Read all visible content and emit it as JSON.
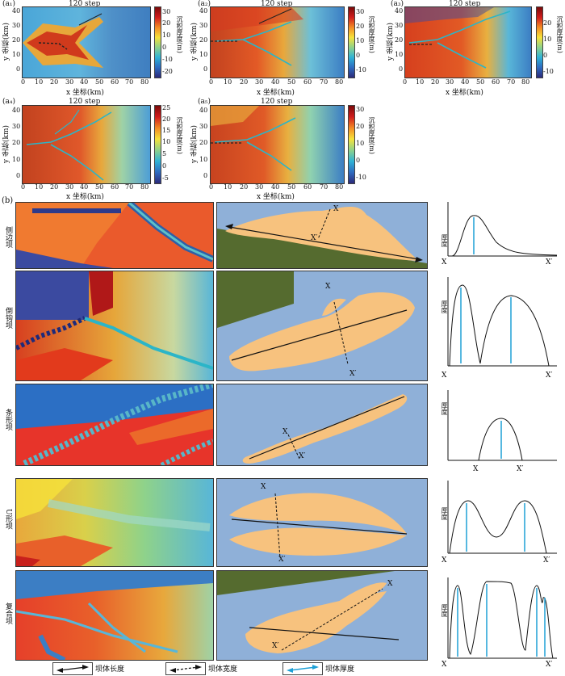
{
  "top_panels": [
    {
      "id": "a1",
      "label": "(a₁)",
      "title": "120 step",
      "xlabel": "x 坐标(km)",
      "ylabel": "y 坐标(km)",
      "colorbar_label": "沉积厚度(m)",
      "colorbar_ticks": [
        "30",
        "20",
        "10",
        "0",
        "-10",
        "-20"
      ],
      "y_ticks": [
        "40",
        "30",
        "20",
        "10",
        "0"
      ],
      "x_ticks": [
        "0",
        "10",
        "20",
        "30",
        "40",
        "50",
        "60",
        "70",
        "80"
      ]
    },
    {
      "id": "a2",
      "label": "(a₂)",
      "title": "120 step",
      "xlabel": "x 坐标(km)",
      "ylabel": "y 坐标(km)",
      "colorbar_label": "沉积厚度(m)",
      "colorbar_ticks": [
        "30",
        "20",
        "10",
        "0",
        "-10"
      ],
      "y_ticks": [
        "40",
        "30",
        "20",
        "10",
        "0"
      ],
      "x_ticks": [
        "0",
        "10",
        "20",
        "30",
        "40",
        "50",
        "60",
        "70",
        "80"
      ]
    },
    {
      "id": "a3",
      "label": "(a₃)",
      "title": "120 step",
      "xlabel": "x 坐标(km)",
      "ylabel": "y 坐标(km)",
      "colorbar_label": "沉积厚度(m)",
      "colorbar_ticks": [
        "20",
        "10",
        "0",
        "-10"
      ],
      "y_ticks": [
        "40",
        "30",
        "20",
        "10",
        "0"
      ],
      "x_ticks": [
        "0",
        "10",
        "20",
        "30",
        "40",
        "50",
        "60",
        "70",
        "80"
      ]
    },
    {
      "id": "a4",
      "label": "(a₄)",
      "title": "120 step",
      "xlabel": "x 坐标(km)",
      "ylabel": "y 坐标(km)",
      "colorbar_label": "沉积厚度(m)",
      "colorbar_ticks": [
        "25",
        "20",
        "15",
        "10",
        "5",
        "0",
        "-5"
      ],
      "y_ticks": [
        "40",
        "30",
        "20",
        "10",
        "0"
      ],
      "x_ticks": [
        "0",
        "10",
        "20",
        "30",
        "40",
        "50",
        "60",
        "70",
        "80"
      ]
    },
    {
      "id": "a5",
      "label": "(a₅)",
      "title": "120 step",
      "xlabel": "x 坐标(km)",
      "ylabel": "y 坐标(km)",
      "colorbar_label": "沉积厚度(m)",
      "colorbar_ticks": [
        "30",
        "20",
        "10",
        "0",
        "-10"
      ],
      "y_ticks": [
        "40",
        "30",
        "20",
        "10",
        "0"
      ],
      "x_ticks": [
        "0",
        "10",
        "20",
        "30",
        "40",
        "50",
        "60",
        "70",
        "80"
      ]
    }
  ],
  "panel_b_label": "(b)",
  "rows": [
    {
      "name": "侧边坝",
      "x_start": "X",
      "x_end": "X′",
      "thickness_label": "厚度"
    },
    {
      "name": "倒钩坝",
      "x_start": "X",
      "x_end": "X′",
      "thickness_label": "厚度"
    },
    {
      "name": "条形坝",
      "x_start": "X",
      "x_end": "X′",
      "thickness_label": "厚度"
    },
    {
      "name": "U形坝",
      "x_start": "X",
      "x_end": "X′",
      "thickness_label": "厚度"
    },
    {
      "name": "复合坝",
      "x_start": "X",
      "x_end": "X′",
      "thickness_label": "厚度"
    }
  ],
  "legend": [
    {
      "label": "坝体长度"
    },
    {
      "label": "坝体宽度"
    },
    {
      "label": "坝体厚度"
    }
  ],
  "colors": {
    "deep": "#3b4aa0",
    "water": "#8fb0d8",
    "bar": "#f7c27e",
    "land": "#556b2f",
    "thickness_arrow": "#1ea0d6"
  }
}
